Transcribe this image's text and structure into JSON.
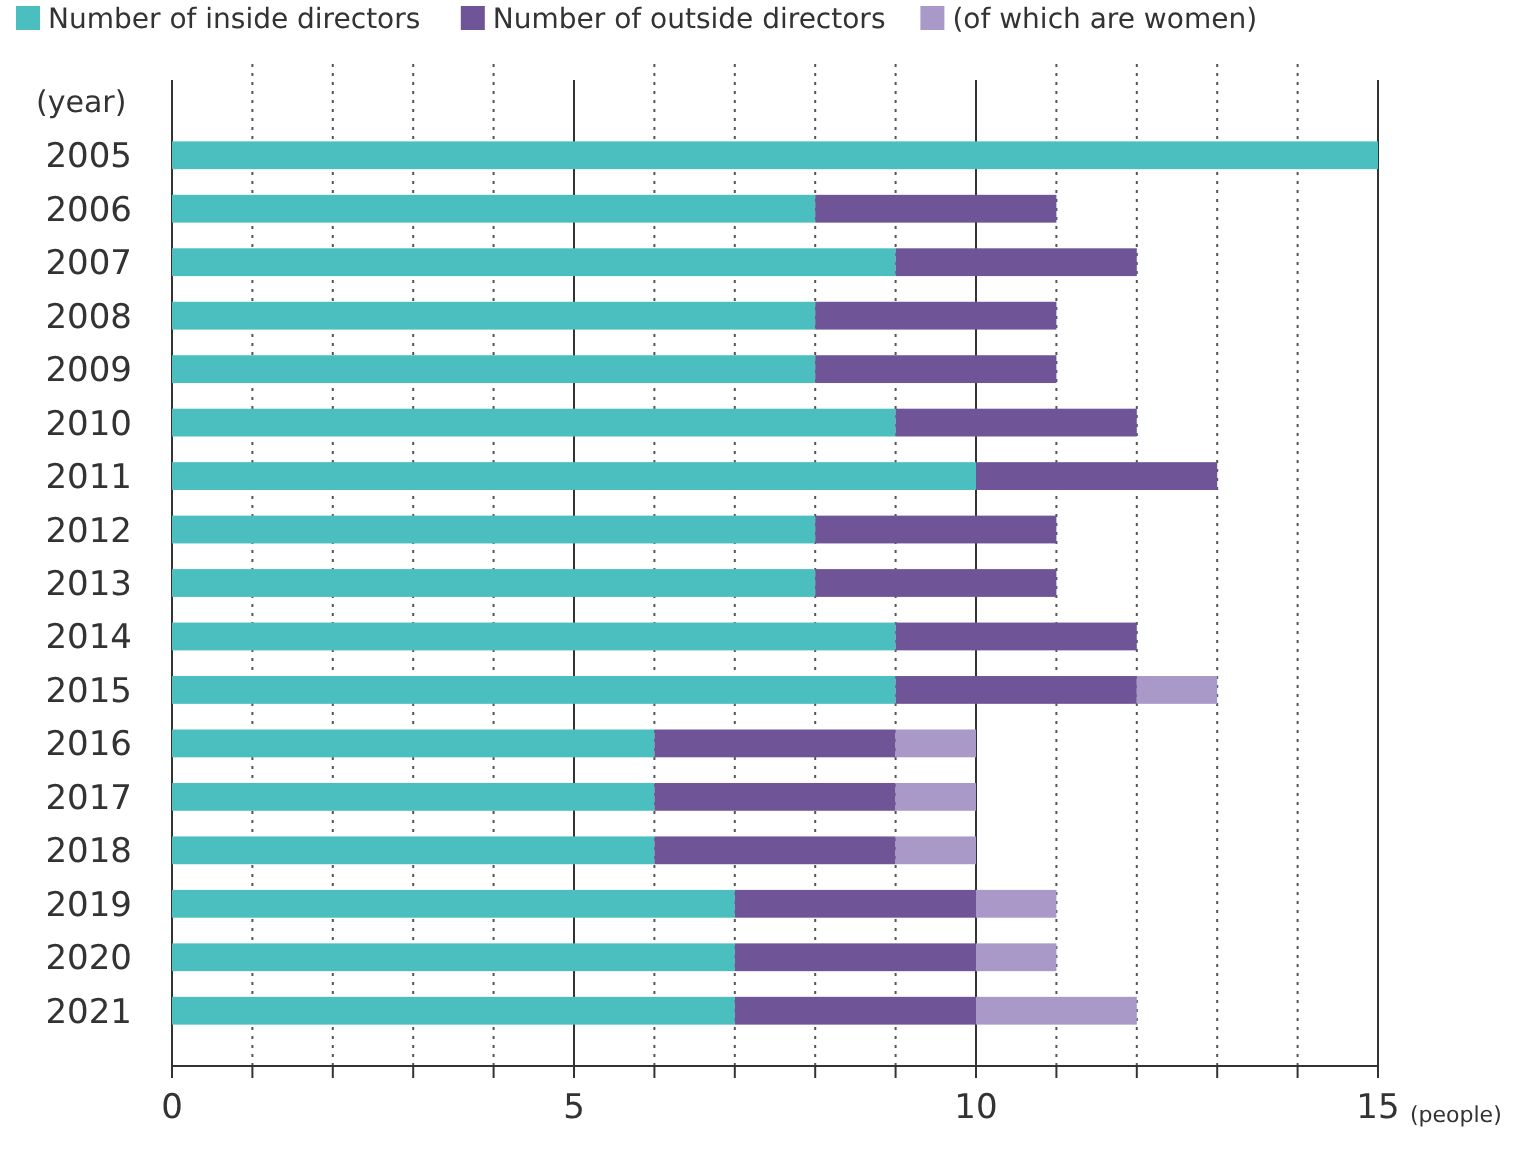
{
  "chart_data": {
    "type": "bar",
    "orientation": "horizontal",
    "stacked": true,
    "categories": [
      "2005",
      "2006",
      "2007",
      "2008",
      "2009",
      "2010",
      "2011",
      "2012",
      "2013",
      "2014",
      "2015",
      "2016",
      "2017",
      "2018",
      "2019",
      "2020",
      "2021"
    ],
    "series": [
      {
        "name": "Number of inside directors",
        "color": "#4bbfbf",
        "values": [
          15,
          8,
          9,
          8,
          8,
          9,
          10,
          8,
          8,
          9,
          9,
          6,
          6,
          6,
          7,
          7,
          7
        ]
      },
      {
        "name": "Number of outside directors",
        "color": "#6f5597",
        "values": [
          0,
          3,
          3,
          3,
          3,
          3,
          3,
          3,
          3,
          3,
          3,
          3,
          3,
          3,
          3,
          3,
          3
        ]
      },
      {
        "name": "(of which are women)",
        "color": "#a899c8",
        "values": [
          0,
          0,
          0,
          0,
          0,
          0,
          0,
          0,
          0,
          0,
          1,
          1,
          1,
          1,
          1,
          1,
          2
        ]
      }
    ],
    "xlim": [
      0,
      15
    ],
    "xticks": [
      0,
      {
        "value": 1,
        "label": null
      },
      {
        "value": 2,
        "label": null
      },
      {
        "value": 3,
        "label": null
      },
      {
        "value": 4,
        "label": null
      },
      5,
      {
        "value": 6,
        "label": null
      },
      {
        "value": 7,
        "label": null
      },
      {
        "value": 8,
        "label": null
      },
      {
        "value": 9,
        "label": null
      },
      10,
      {
        "value": 11,
        "label": null
      },
      {
        "value": 12,
        "label": null
      },
      {
        "value": 13,
        "label": null
      },
      {
        "value": 14,
        "label": null
      },
      15
    ],
    "xlabel": "(people)",
    "ylabel": "(year)",
    "grid": "x",
    "legend": "top"
  }
}
